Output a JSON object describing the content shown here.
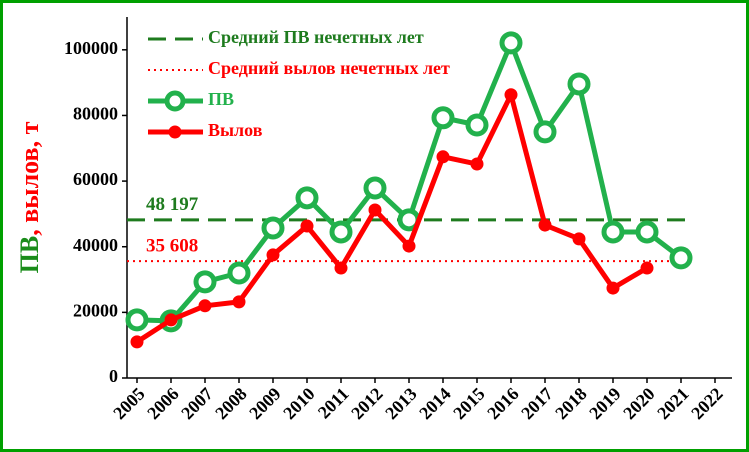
{
  "chart_data": {
    "type": "line",
    "ylabel_parts": [
      {
        "text": "ПВ",
        "color": "#1a8c1a"
      },
      {
        "text": ", вылов, т",
        "color": "#ff0000"
      }
    ],
    "categories": [
      "2005",
      "2006",
      "2007",
      "2008",
      "2009",
      "2010",
      "2011",
      "2012",
      "2013",
      "2014",
      "2015",
      "2016",
      "2017",
      "2018",
      "2019",
      "2020",
      "2021",
      "2022"
    ],
    "series": [
      {
        "name": "ПВ",
        "color": "#22b14c",
        "marker": "ring",
        "values": [
          17700,
          17400,
          29300,
          32000,
          45700,
          54900,
          44500,
          57900,
          48200,
          79300,
          77100,
          102100,
          75000,
          89600,
          44500,
          44500,
          36600,
          null
        ]
      },
      {
        "name": "Вылов",
        "color": "#ff0000",
        "marker": "dot",
        "values": [
          11000,
          17700,
          22000,
          23200,
          37500,
          46300,
          33500,
          51200,
          40200,
          67400,
          65200,
          86300,
          46600,
          42400,
          27400,
          33500,
          null,
          null
        ]
      }
    ],
    "reference_lines": [
      {
        "name": "Средний ПВ нечетных лет",
        "value": 48197,
        "label": "48 197",
        "color": "#1e7b1e",
        "style": "dashed"
      },
      {
        "name": "Средний вылов нечетных лет",
        "value": 35608,
        "label": "35 608",
        "color": "#ff0000",
        "style": "dotted"
      }
    ],
    "ylim": [
      0,
      110000
    ],
    "yticks": [
      0,
      20000,
      40000,
      60000,
      80000,
      100000
    ],
    "border_color": "#00a000"
  }
}
